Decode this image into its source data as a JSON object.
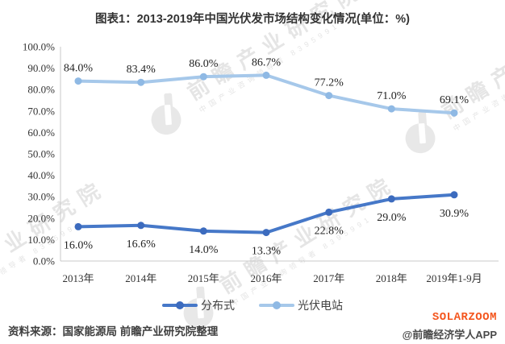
{
  "title": "图表1：2013-2019年中国光伏发市场结构变化情况(单位：%)",
  "chart_data": {
    "type": "line",
    "categories": [
      "2013年",
      "2014年",
      "2015年",
      "2016年",
      "2017年",
      "2018年",
      "2019年1-9月"
    ],
    "series": [
      {
        "name": "分布式",
        "color": "#4678C8",
        "marker_color": "#3C6BBE",
        "label_position": "below",
        "values": [
          16.0,
          16.6,
          14.0,
          13.3,
          22.8,
          29.0,
          30.9
        ]
      },
      {
        "name": "光伏电站",
        "color": "#A6C8EA",
        "marker_color": "#8FB9E4",
        "label_position": "above",
        "values": [
          84.0,
          83.4,
          86.0,
          86.7,
          77.2,
          71.0,
          69.1
        ]
      }
    ],
    "ylim": [
      0,
      100
    ],
    "ytick_labels": [
      "0.0%",
      "10.0%",
      "20.0%",
      "30.0%",
      "40.0%",
      "50.0%",
      "60.0%",
      "70.0%",
      "80.0%",
      "90.0%",
      "100.0%"
    ],
    "grid": false,
    "data_labels": true,
    "legend_position": "bottom",
    "axis_color": "#C9C9C9",
    "ylabel": "",
    "xlabel": ""
  },
  "watermark": {
    "brand": "前瞻产业研究院",
    "tagline": "中国产业咨询领导者",
    "digits": "8395991"
  },
  "footer": {
    "source": "资料来源：国家能源局 前瞻产业研究院整理",
    "brand": "SOLARZOOM",
    "brand_color": "#F4561E",
    "credit": "@前瞻经济学人APP"
  }
}
